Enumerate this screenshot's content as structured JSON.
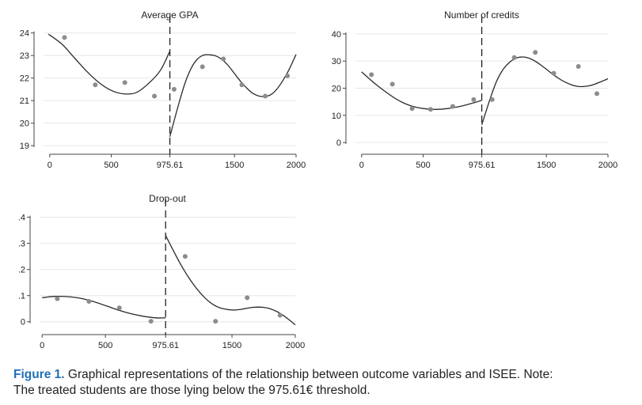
{
  "chart_data": [
    {
      "type": "scatter",
      "title": "Average GPA",
      "xlabel": "",
      "ylabel": "",
      "xlim": [
        -50,
        2000
      ],
      "ylim": [
        18.9,
        24.2
      ],
      "xticks": [
        0,
        500,
        975.61,
        1500,
        2000
      ],
      "xtick_labels": [
        "0",
        "500",
        "975.61",
        "1500",
        "2000"
      ],
      "yticks": [
        19,
        20,
        21,
        22,
        23,
        24
      ],
      "ytick_labels": [
        "19",
        "20",
        "21",
        "22",
        "23",
        "24"
      ],
      "cutoff": 975.61,
      "grid": true,
      "points": {
        "x": [
          120,
          370,
          610,
          850,
          1010,
          1240,
          1410,
          1560,
          1750,
          1930
        ],
        "y": [
          23.8,
          21.7,
          21.8,
          21.2,
          21.5,
          22.5,
          22.85,
          21.7,
          21.2,
          22.1
        ]
      },
      "fit_left": {
        "x": [
          -10,
          100,
          200,
          300,
          400,
          500,
          600,
          700,
          800,
          900,
          975.61
        ],
        "y": [
          23.95,
          23.5,
          22.9,
          22.3,
          21.8,
          21.45,
          21.3,
          21.35,
          21.75,
          22.35,
          23.2
        ]
      },
      "fit_right": {
        "x": [
          975.61,
          1050,
          1100,
          1150,
          1200,
          1250,
          1300,
          1350,
          1400,
          1450,
          1500,
          1550,
          1600,
          1650,
          1700,
          1750,
          1800,
          1850,
          1900,
          1950,
          2000
        ],
        "y": [
          19.4,
          20.9,
          21.8,
          22.45,
          22.85,
          23.02,
          23.03,
          22.98,
          22.82,
          22.55,
          22.2,
          21.85,
          21.55,
          21.32,
          21.2,
          21.18,
          21.28,
          21.55,
          21.95,
          22.45,
          23.05
        ]
      }
    },
    {
      "type": "scatter",
      "title": "Number of credits",
      "xlabel": "",
      "ylabel": "",
      "xlim": [
        -50,
        2000
      ],
      "ylim": [
        -2,
        42
      ],
      "xticks": [
        0,
        500,
        975.61,
        1500,
        2000
      ],
      "xtick_labels": [
        "0",
        "500",
        "975.61",
        "1500",
        "2000"
      ],
      "yticks": [
        0,
        10,
        20,
        30,
        40
      ],
      "ytick_labels": [
        "0",
        "10",
        "20",
        "30",
        "40"
      ],
      "cutoff": 975.61,
      "grid": true,
      "points": {
        "x": [
          80,
          250,
          410,
          560,
          740,
          910,
          1060,
          1240,
          1410,
          1560,
          1760,
          1910
        ],
        "y": [
          25,
          21.5,
          12.5,
          12.2,
          13.3,
          15.8,
          15.8,
          31.3,
          33.2,
          25.5,
          28,
          18
        ]
      },
      "fit_left": {
        "x": [
          0,
          100,
          200,
          300,
          400,
          500,
          600,
          700,
          800,
          900,
          975.61
        ],
        "y": [
          26,
          22,
          18.5,
          15.5,
          13.5,
          12.5,
          12.2,
          12.5,
          13.3,
          14.5,
          15.5
        ]
      },
      "fit_right": {
        "x": [
          975.61,
          1050,
          1100,
          1150,
          1200,
          1250,
          1300,
          1350,
          1400,
          1450,
          1500,
          1550,
          1600,
          1650,
          1700,
          1750,
          1800,
          1850,
          1900,
          1950,
          2000
        ],
        "y": [
          6.5,
          17,
          23,
          27,
          29.5,
          31,
          31.5,
          31.2,
          30.2,
          28.7,
          27,
          25.2,
          23.6,
          22.3,
          21.3,
          20.7,
          20.6,
          20.9,
          21.6,
          22.5,
          23.5
        ]
      }
    },
    {
      "type": "scatter",
      "title": "Drop-out",
      "xlabel": "",
      "ylabel": "",
      "xlim": [
        -20,
        2000
      ],
      "ylim": [
        -0.025,
        0.42
      ],
      "xticks": [
        0,
        500,
        975.61,
        1500,
        2000
      ],
      "xtick_labels": [
        "0",
        "500",
        "975.61",
        "1500",
        "2000"
      ],
      "yticks": [
        0,
        0.1,
        0.2,
        0.3,
        0.4
      ],
      "ytick_labels": [
        "0",
        ".1",
        ".2",
        ".3",
        ".4"
      ],
      "cutoff": 975.61,
      "grid": true,
      "points": {
        "x": [
          120,
          370,
          610,
          860,
          1130,
          1370,
          1620,
          1880
        ],
        "y": [
          0.088,
          0.078,
          0.053,
          0.002,
          0.25,
          0.002,
          0.092,
          0.025
        ]
      },
      "fit_left": {
        "x": [
          0,
          100,
          200,
          300,
          400,
          500,
          600,
          700,
          800,
          900,
          975.61
        ],
        "y": [
          0.092,
          0.097,
          0.096,
          0.09,
          0.078,
          0.062,
          0.045,
          0.031,
          0.021,
          0.015,
          0.015
        ]
      },
      "fit_right": {
        "x": [
          975.61,
          1050,
          1100,
          1150,
          1200,
          1250,
          1300,
          1350,
          1400,
          1450,
          1500,
          1550,
          1600,
          1650,
          1700,
          1750,
          1800,
          1850,
          1900,
          1950,
          2000
        ],
        "y": [
          0.33,
          0.26,
          0.215,
          0.175,
          0.14,
          0.11,
          0.085,
          0.066,
          0.054,
          0.048,
          0.045,
          0.046,
          0.05,
          0.054,
          0.056,
          0.055,
          0.05,
          0.04,
          0.026,
          0.008,
          -0.012
        ]
      }
    }
  ],
  "caption": {
    "label": "Figure 1.",
    "text_line1": "Graphical representations of the relationship between outcome variables and ISEE. Note:",
    "text_line2": "The treated students are those lying below the 975.61€ threshold."
  }
}
